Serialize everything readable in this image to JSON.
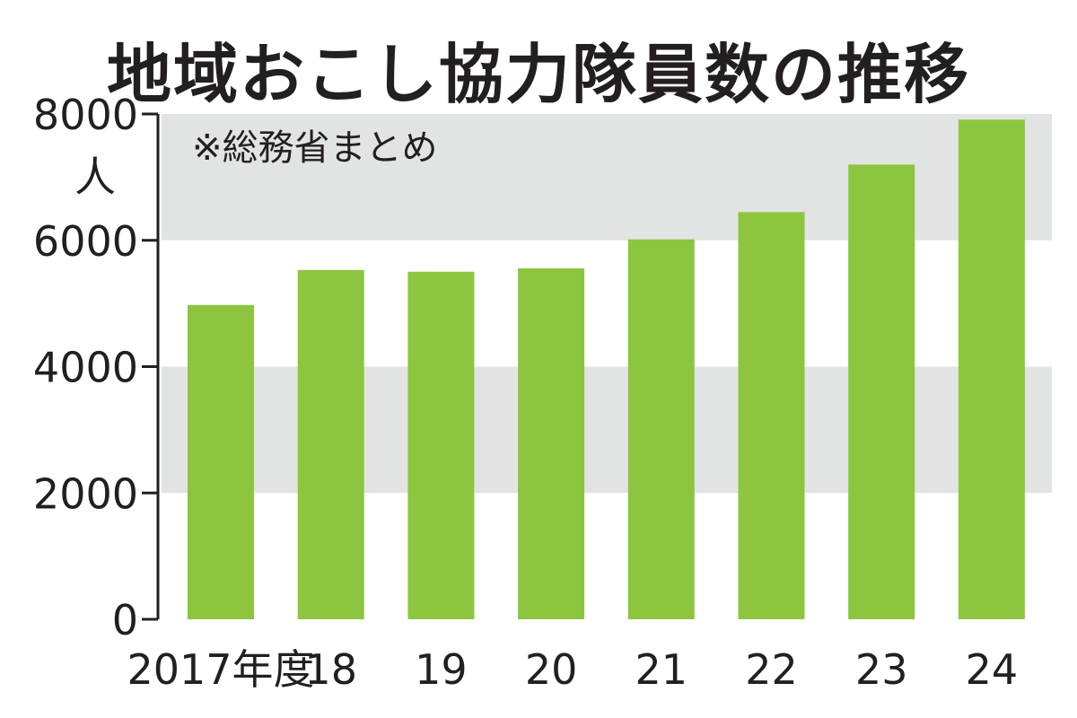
{
  "chart_data": {
    "type": "bar",
    "title": "地域おこし協力隊員数の推移",
    "note": "※総務省まとめ",
    "unit": "人",
    "categories": [
      "2017年度",
      "18",
      "19",
      "20",
      "21",
      "22",
      "23",
      "24"
    ],
    "values": [
      4976,
      5530,
      5503,
      5556,
      6015,
      6447,
      7200,
      7910
    ],
    "yticks": [
      "0",
      "2000",
      "4000",
      "6000",
      "8000"
    ],
    "ylim": [
      0,
      8000
    ],
    "bar_color": "#8cc63f",
    "band_color": "#e1e4e3",
    "grid": false
  }
}
